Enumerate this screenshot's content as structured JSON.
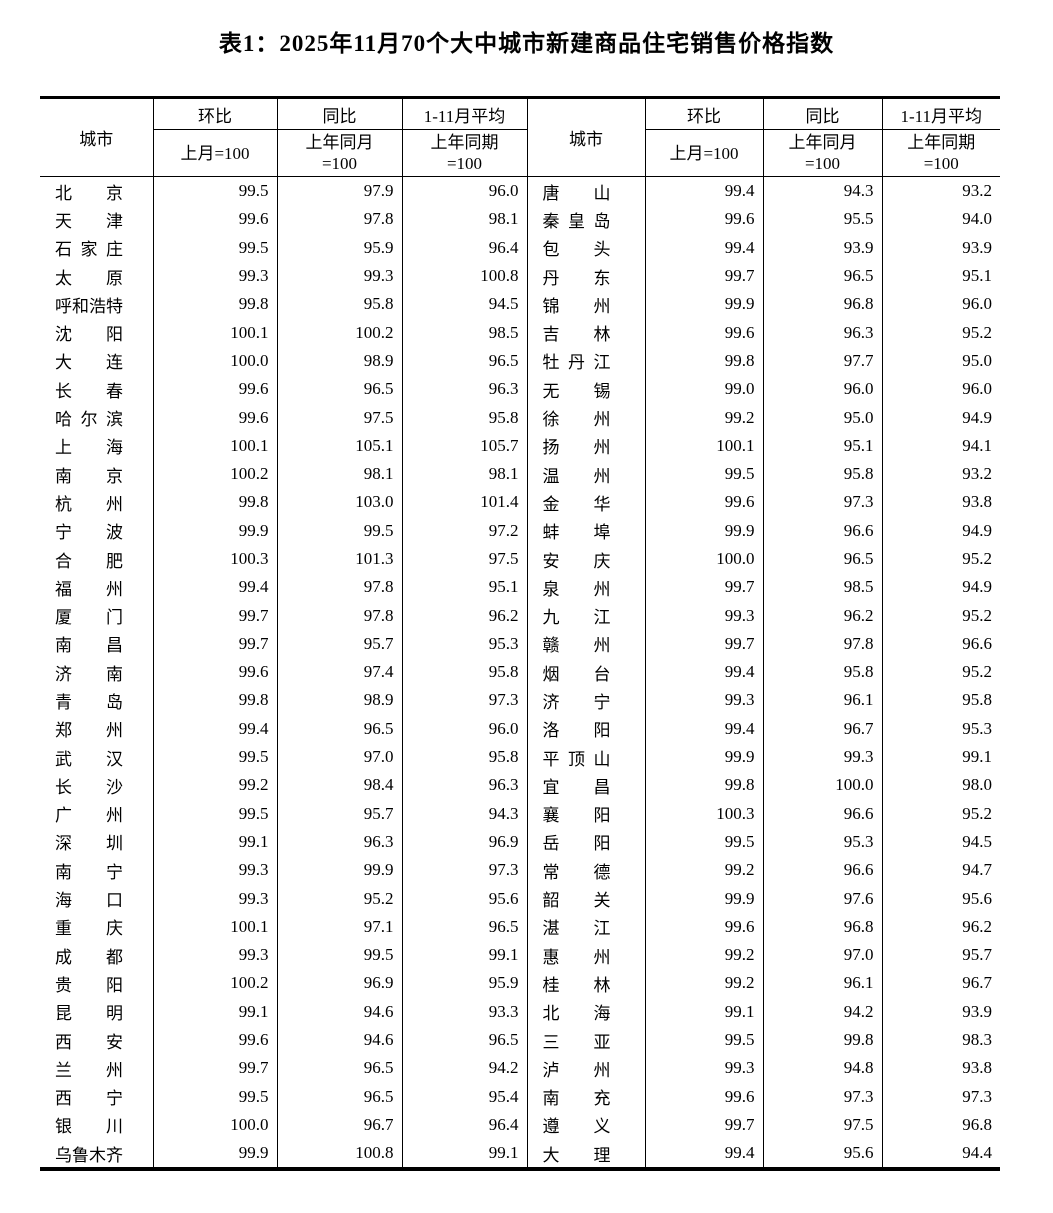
{
  "title": "表1：2025年11月70个大中城市新建商品住宅销售价格指数",
  "columns": {
    "city": "城市",
    "mom_top": "环比",
    "mom_bottom": "上月=100",
    "yoy_top": "同比",
    "yoy_bottom_l1": "上年同月",
    "yoy_bottom_l2": "=100",
    "avg_top": "1-11月平均",
    "avg_bottom_l1": "上年同期",
    "avg_bottom_l2": "=100"
  },
  "left_rows": [
    {
      "city": "北京",
      "mom": "99.5",
      "yoy": "97.9",
      "avg": "96.0"
    },
    {
      "city": "天津",
      "mom": "99.6",
      "yoy": "97.8",
      "avg": "98.1"
    },
    {
      "city": "石家庄",
      "mom": "99.5",
      "yoy": "95.9",
      "avg": "96.4"
    },
    {
      "city": "太原",
      "mom": "99.3",
      "yoy": "99.3",
      "avg": "100.8"
    },
    {
      "city": "呼和浩特",
      "mom": "99.8",
      "yoy": "95.8",
      "avg": "94.5"
    },
    {
      "city": "沈阳",
      "mom": "100.1",
      "yoy": "100.2",
      "avg": "98.5"
    },
    {
      "city": "大连",
      "mom": "100.0",
      "yoy": "98.9",
      "avg": "96.5"
    },
    {
      "city": "长春",
      "mom": "99.6",
      "yoy": "96.5",
      "avg": "96.3"
    },
    {
      "city": "哈尔滨",
      "mom": "99.6",
      "yoy": "97.5",
      "avg": "95.8"
    },
    {
      "city": "上海",
      "mom": "100.1",
      "yoy": "105.1",
      "avg": "105.7"
    },
    {
      "city": "南京",
      "mom": "100.2",
      "yoy": "98.1",
      "avg": "98.1"
    },
    {
      "city": "杭州",
      "mom": "99.8",
      "yoy": "103.0",
      "avg": "101.4"
    },
    {
      "city": "宁波",
      "mom": "99.9",
      "yoy": "99.5",
      "avg": "97.2"
    },
    {
      "city": "合肥",
      "mom": "100.3",
      "yoy": "101.3",
      "avg": "97.5"
    },
    {
      "city": "福州",
      "mom": "99.4",
      "yoy": "97.8",
      "avg": "95.1"
    },
    {
      "city": "厦门",
      "mom": "99.7",
      "yoy": "97.8",
      "avg": "96.2"
    },
    {
      "city": "南昌",
      "mom": "99.7",
      "yoy": "95.7",
      "avg": "95.3"
    },
    {
      "city": "济南",
      "mom": "99.6",
      "yoy": "97.4",
      "avg": "95.8"
    },
    {
      "city": "青岛",
      "mom": "99.8",
      "yoy": "98.9",
      "avg": "97.3"
    },
    {
      "city": "郑州",
      "mom": "99.4",
      "yoy": "96.5",
      "avg": "96.0"
    },
    {
      "city": "武汉",
      "mom": "99.5",
      "yoy": "97.0",
      "avg": "95.8"
    },
    {
      "city": "长沙",
      "mom": "99.2",
      "yoy": "98.4",
      "avg": "96.3"
    },
    {
      "city": "广州",
      "mom": "99.5",
      "yoy": "95.7",
      "avg": "94.3"
    },
    {
      "city": "深圳",
      "mom": "99.1",
      "yoy": "96.3",
      "avg": "96.9"
    },
    {
      "city": "南宁",
      "mom": "99.3",
      "yoy": "99.9",
      "avg": "97.3"
    },
    {
      "city": "海口",
      "mom": "99.3",
      "yoy": "95.2",
      "avg": "95.6"
    },
    {
      "city": "重庆",
      "mom": "100.1",
      "yoy": "97.1",
      "avg": "96.5"
    },
    {
      "city": "成都",
      "mom": "99.3",
      "yoy": "99.5",
      "avg": "99.1"
    },
    {
      "city": "贵阳",
      "mom": "100.2",
      "yoy": "96.9",
      "avg": "95.9"
    },
    {
      "city": "昆明",
      "mom": "99.1",
      "yoy": "94.6",
      "avg": "93.3"
    },
    {
      "city": "西安",
      "mom": "99.6",
      "yoy": "94.6",
      "avg": "96.5"
    },
    {
      "city": "兰州",
      "mom": "99.7",
      "yoy": "96.5",
      "avg": "94.2"
    },
    {
      "city": "西宁",
      "mom": "99.5",
      "yoy": "96.5",
      "avg": "95.4"
    },
    {
      "city": "银川",
      "mom": "100.0",
      "yoy": "96.7",
      "avg": "96.4"
    },
    {
      "city": "乌鲁木齐",
      "mom": "99.9",
      "yoy": "100.8",
      "avg": "99.1"
    }
  ],
  "right_rows": [
    {
      "city": "唐山",
      "mom": "99.4",
      "yoy": "94.3",
      "avg": "93.2"
    },
    {
      "city": "秦皇岛",
      "mom": "99.6",
      "yoy": "95.5",
      "avg": "94.0"
    },
    {
      "city": "包头",
      "mom": "99.4",
      "yoy": "93.9",
      "avg": "93.9"
    },
    {
      "city": "丹东",
      "mom": "99.7",
      "yoy": "96.5",
      "avg": "95.1"
    },
    {
      "city": "锦州",
      "mom": "99.9",
      "yoy": "96.8",
      "avg": "96.0"
    },
    {
      "city": "吉林",
      "mom": "99.6",
      "yoy": "96.3",
      "avg": "95.2"
    },
    {
      "city": "牡丹江",
      "mom": "99.8",
      "yoy": "97.7",
      "avg": "95.0"
    },
    {
      "city": "无锡",
      "mom": "99.0",
      "yoy": "96.0",
      "avg": "96.0"
    },
    {
      "city": "徐州",
      "mom": "99.2",
      "yoy": "95.0",
      "avg": "94.9"
    },
    {
      "city": "扬州",
      "mom": "100.1",
      "yoy": "95.1",
      "avg": "94.1"
    },
    {
      "city": "温州",
      "mom": "99.5",
      "yoy": "95.8",
      "avg": "93.2"
    },
    {
      "city": "金华",
      "mom": "99.6",
      "yoy": "97.3",
      "avg": "93.8"
    },
    {
      "city": "蚌埠",
      "mom": "99.9",
      "yoy": "96.6",
      "avg": "94.9"
    },
    {
      "city": "安庆",
      "mom": "100.0",
      "yoy": "96.5",
      "avg": "95.2"
    },
    {
      "city": "泉州",
      "mom": "99.7",
      "yoy": "98.5",
      "avg": "94.9"
    },
    {
      "city": "九江",
      "mom": "99.3",
      "yoy": "96.2",
      "avg": "95.2"
    },
    {
      "city": "赣州",
      "mom": "99.7",
      "yoy": "97.8",
      "avg": "96.6"
    },
    {
      "city": "烟台",
      "mom": "99.4",
      "yoy": "95.8",
      "avg": "95.2"
    },
    {
      "city": "济宁",
      "mom": "99.3",
      "yoy": "96.1",
      "avg": "95.8"
    },
    {
      "city": "洛阳",
      "mom": "99.4",
      "yoy": "96.7",
      "avg": "95.3"
    },
    {
      "city": "平顶山",
      "mom": "99.9",
      "yoy": "99.3",
      "avg": "99.1"
    },
    {
      "city": "宜昌",
      "mom": "99.8",
      "yoy": "100.0",
      "avg": "98.0"
    },
    {
      "city": "襄阳",
      "mom": "100.3",
      "yoy": "96.6",
      "avg": "95.2"
    },
    {
      "city": "岳阳",
      "mom": "99.5",
      "yoy": "95.3",
      "avg": "94.5"
    },
    {
      "city": "常德",
      "mom": "99.2",
      "yoy": "96.6",
      "avg": "94.7"
    },
    {
      "city": "韶关",
      "mom": "99.9",
      "yoy": "97.6",
      "avg": "95.6"
    },
    {
      "city": "湛江",
      "mom": "99.6",
      "yoy": "96.8",
      "avg": "96.2"
    },
    {
      "city": "惠州",
      "mom": "99.2",
      "yoy": "97.0",
      "avg": "95.7"
    },
    {
      "city": "桂林",
      "mom": "99.2",
      "yoy": "96.1",
      "avg": "96.7"
    },
    {
      "city": "北海",
      "mom": "99.1",
      "yoy": "94.2",
      "avg": "93.9"
    },
    {
      "city": "三亚",
      "mom": "99.5",
      "yoy": "99.8",
      "avg": "98.3"
    },
    {
      "city": "泸州",
      "mom": "99.3",
      "yoy": "94.8",
      "avg": "93.8"
    },
    {
      "city": "南充",
      "mom": "99.6",
      "yoy": "97.3",
      "avg": "97.3"
    },
    {
      "city": "遵义",
      "mom": "99.7",
      "yoy": "97.5",
      "avg": "96.8"
    },
    {
      "city": "大理",
      "mom": "99.4",
      "yoy": "95.6",
      "avg": "94.4"
    }
  ]
}
